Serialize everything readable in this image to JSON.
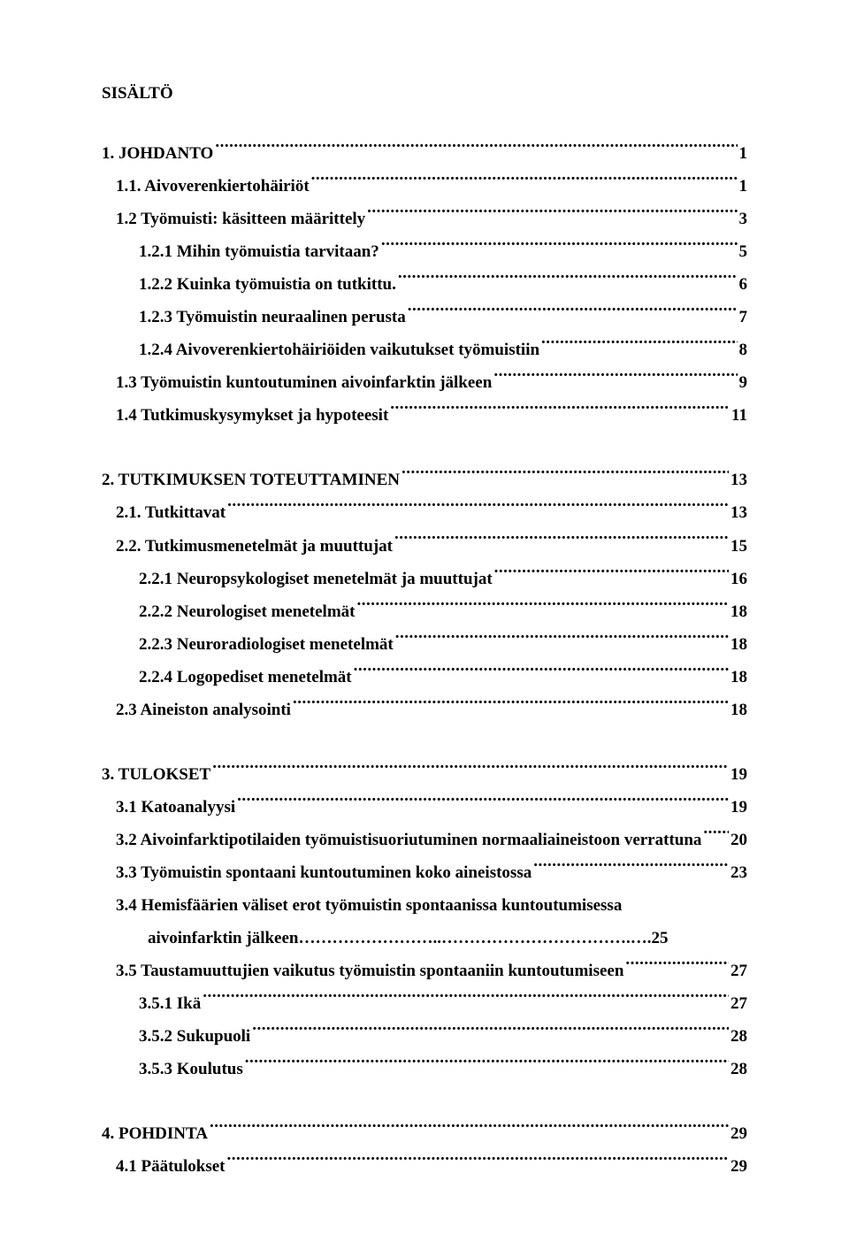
{
  "title": "SISÄLTÖ",
  "entries": [
    {
      "label": "1. JOHDANTO",
      "page": "1",
      "indent": 0,
      "block": 0
    },
    {
      "label": "1.1. Aivoverenkiertohäiriöt",
      "page": "1",
      "indent": 1,
      "block": 0
    },
    {
      "label": "1.2 Työmuisti: käsitteen määrittely",
      "page": "3",
      "indent": 1,
      "block": 0
    },
    {
      "label": "1.2.1 Mihin työmuistia tarvitaan?",
      "page": "5",
      "indent": 2,
      "block": 0
    },
    {
      "label": "1.2.2 Kuinka työmuistia on tutkittu.",
      "page": "6",
      "indent": 2,
      "block": 0
    },
    {
      "label": "1.2.3 Työmuistin neuraalinen perusta",
      "page": "7",
      "indent": 2,
      "block": 0
    },
    {
      "label": "1.2.4 Aivoverenkiertohäiriöiden vaikutukset työmuistiin",
      "page": "8",
      "indent": 2,
      "block": 0
    },
    {
      "label": "1.3 Työmuistin kuntoutuminen aivoinfarktin jälkeen",
      "page": "9",
      "indent": 1,
      "block": 0
    },
    {
      "label": "1.4 Tutkimuskysymykset ja hypoteesit",
      "page": "11",
      "indent": 1,
      "block": 0
    },
    {
      "label": "2. TUTKIMUKSEN TOTEUTTAMINEN",
      "page": "13",
      "indent": 0,
      "block": 1
    },
    {
      "label": "2.1. Tutkittavat",
      "page": "13",
      "indent": 1,
      "block": 1
    },
    {
      "label": "2.2. Tutkimusmenetelmät ja muuttujat",
      "page": "15",
      "indent": 1,
      "block": 1
    },
    {
      "label": "2.2.1 Neuropsykologiset menetelmät ja muuttujat",
      "page": "16",
      "indent": 2,
      "block": 1
    },
    {
      "label": "2.2.2 Neurologiset menetelmät",
      "page": "18",
      "indent": 2,
      "block": 1
    },
    {
      "label": "2.2.3 Neuroradiologiset menetelmät",
      "page": "18",
      "indent": 2,
      "block": 1
    },
    {
      "label": "2.2.4 Logopediset menetelmät",
      "page": "18",
      "indent": 2,
      "block": 1
    },
    {
      "label": "2.3 Aineiston analysointi",
      "page": "18",
      "indent": 1,
      "block": 1
    },
    {
      "label": "3. TULOKSET",
      "page": "19",
      "indent": 0,
      "block": 2
    },
    {
      "label": "3.1 Katoanalyysi",
      "page": "19",
      "indent": 1,
      "block": 2
    },
    {
      "label": "3.2 Aivoinfarktipotilaiden työmuistisuoriutuminen normaaliaineistoon verrattuna",
      "page": "20",
      "indent": 1,
      "block": 2
    },
    {
      "label": "3.3 Työmuistin spontaani kuntoutuminen koko aineistossa",
      "page": "23",
      "indent": 1,
      "block": 2
    },
    {
      "label": "3.4 Hemisfäärien väliset erot työmuistin spontaanissa kuntoutumisessa",
      "page": "",
      "indent": 1,
      "block": 2,
      "noleader": true
    },
    {
      "label": "aivoinfarktin jälkeen……………………..…………………………….…",
      "page": ".25",
      "indent": 3,
      "block": 2,
      "noleader": true
    },
    {
      "label": "3.5 Taustamuuttujien vaikutus työmuistin spontaaniin kuntoutumiseen",
      "page": "27",
      "indent": 1,
      "block": 2
    },
    {
      "label": "3.5.1 Ikä",
      "page": "27",
      "indent": 2,
      "block": 2
    },
    {
      "label": "3.5.2 Sukupuoli",
      "page": "28",
      "indent": 2,
      "block": 2
    },
    {
      "label": "3.5.3 Koulutus",
      "page": "28",
      "indent": 2,
      "block": 2
    },
    {
      "label": "4. POHDINTA",
      "page": "29",
      "indent": 0,
      "block": 3
    },
    {
      "label": "4.1 Päätulokset",
      "page": "29",
      "indent": 1,
      "block": 3
    }
  ]
}
